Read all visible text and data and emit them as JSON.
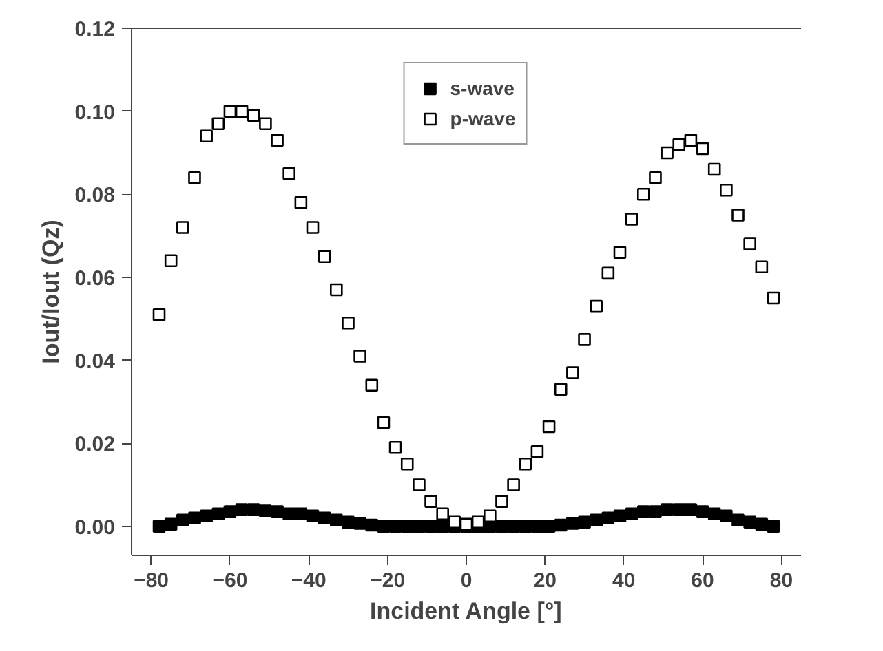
{
  "chart_data": {
    "type": "scatter",
    "xlabel": "Incident Angle [°]",
    "ylabel": "Iout/Iout (Qz)",
    "xlim": [
      -85,
      85
    ],
    "ylim": [
      -0.007,
      0.12
    ],
    "xticks": [
      -80,
      -60,
      -40,
      -20,
      0,
      20,
      40,
      60,
      80
    ],
    "yticks": [
      {
        "value": 0,
        "label": "0.00"
      },
      {
        "value": 0.02,
        "label": "0.02"
      },
      {
        "value": 0.04,
        "label": "0.04"
      },
      {
        "value": 0.06,
        "label": "0.06"
      },
      {
        "value": 0.08,
        "label": "0.08"
      },
      {
        "value": 0.1,
        "label": "0.10"
      },
      {
        "value": 0.12,
        "label": "0.12"
      }
    ],
    "grid": false,
    "legend": "top",
    "marker": "square",
    "series": [
      {
        "name": "s-wave",
        "color": "#000000",
        "x": [
          -78,
          -75,
          -72,
          -69,
          -66,
          -63,
          -60,
          -57,
          -54,
          -51,
          -48,
          -45,
          -42,
          -39,
          -36,
          -33,
          -30,
          -27,
          -24,
          -21,
          -18,
          -15,
          -12,
          -9,
          -6,
          -3,
          0,
          3,
          6,
          9,
          12,
          15,
          18,
          21,
          24,
          27,
          30,
          33,
          36,
          39,
          42,
          45,
          48,
          51,
          54,
          57,
          60,
          63,
          66,
          69,
          72,
          75,
          78
        ],
        "values": [
          0.0,
          0.0005,
          0.0015,
          0.002,
          0.0025,
          0.003,
          0.0035,
          0.004,
          0.004,
          0.0037,
          0.0035,
          0.003,
          0.003,
          0.0025,
          0.002,
          0.0015,
          0.001,
          0.0007,
          0.0003,
          0,
          0,
          0,
          0,
          0,
          0,
          0,
          0,
          0,
          0,
          0,
          0,
          0,
          0,
          0,
          0.0003,
          0.0007,
          0.001,
          0.0015,
          0.002,
          0.0025,
          0.003,
          0.0035,
          0.0035,
          0.004,
          0.004,
          0.004,
          0.0035,
          0.003,
          0.0025,
          0.0015,
          0.001,
          0.0005,
          0
        ]
      },
      {
        "name": "p-wave",
        "color": "#000000",
        "x": [
          -78,
          -75,
          -72,
          -69,
          -66,
          -63,
          -60,
          -57,
          -54,
          -51,
          -48,
          -45,
          -42,
          -39,
          -36,
          -33,
          -30,
          -27,
          -24,
          -21,
          -18,
          -15,
          -12,
          -9,
          -6,
          -3,
          0,
          3,
          6,
          9,
          12,
          15,
          18,
          21,
          24,
          27,
          30,
          33,
          36,
          39,
          42,
          45,
          48,
          51,
          54,
          57,
          60,
          63,
          66,
          69,
          72,
          75,
          78
        ],
        "values": [
          0.051,
          0.064,
          0.072,
          0.084,
          0.094,
          0.097,
          0.1,
          0.1,
          0.099,
          0.097,
          0.093,
          0.085,
          0.078,
          0.072,
          0.065,
          0.057,
          0.049,
          0.041,
          0.034,
          0.025,
          0.019,
          0.015,
          0.01,
          0.006,
          0.003,
          0.001,
          0.0005,
          0.001,
          0.0025,
          0.006,
          0.01,
          0.015,
          0.018,
          0.024,
          0.033,
          0.037,
          0.045,
          0.053,
          0.061,
          0.066,
          0.074,
          0.08,
          0.084,
          0.09,
          0.092,
          0.093,
          0.091,
          0.086,
          0.081,
          0.075,
          0.068,
          0.0625,
          0.055
        ]
      }
    ]
  }
}
